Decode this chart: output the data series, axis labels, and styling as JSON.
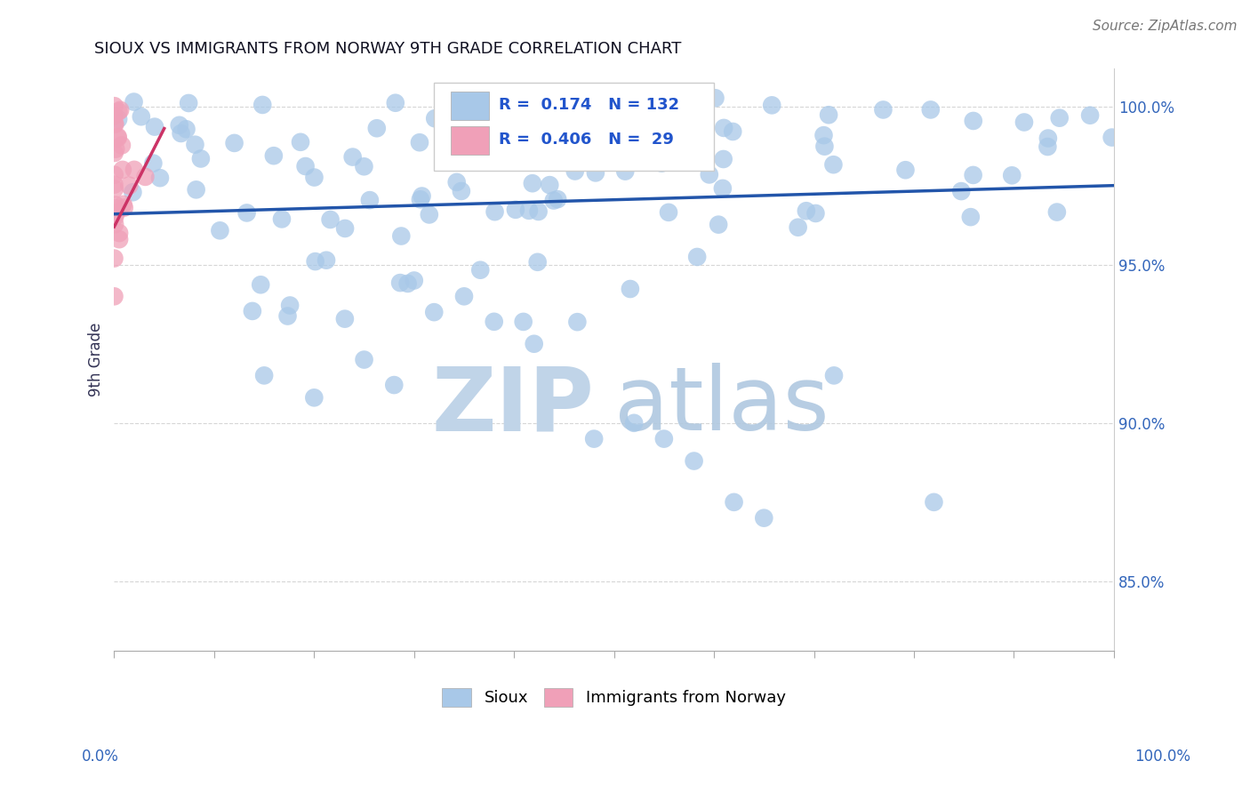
{
  "title": "SIOUX VS IMMIGRANTS FROM NORWAY 9TH GRADE CORRELATION CHART",
  "source_text": "Source: ZipAtlas.com",
  "ylabel": "9th Grade",
  "legend_sioux_R": "0.174",
  "legend_sioux_N": "132",
  "legend_norway_R": "0.406",
  "legend_norway_N": " 29",
  "blue_color": "#a8c8e8",
  "pink_color": "#f0a0b8",
  "blue_line_color": "#2255aa",
  "pink_line_color": "#cc3366",
  "legend_R_color": "#2255cc",
  "watermark_zip_color": "#c0d4e8",
  "watermark_atlas_color": "#b0c8e0",
  "background_color": "#ffffff",
  "xlim": [
    0.0,
    1.0
  ],
  "ylim": [
    0.828,
    1.012
  ],
  "yticks": [
    0.85,
    0.9,
    0.95,
    1.0
  ],
  "ytick_labels": [
    "85.0%",
    "90.0%",
    "95.0%",
    "100.0%"
  ],
  "title_fontsize": 13,
  "source_fontsize": 11,
  "tick_fontsize": 12,
  "ylabel_fontsize": 12
}
